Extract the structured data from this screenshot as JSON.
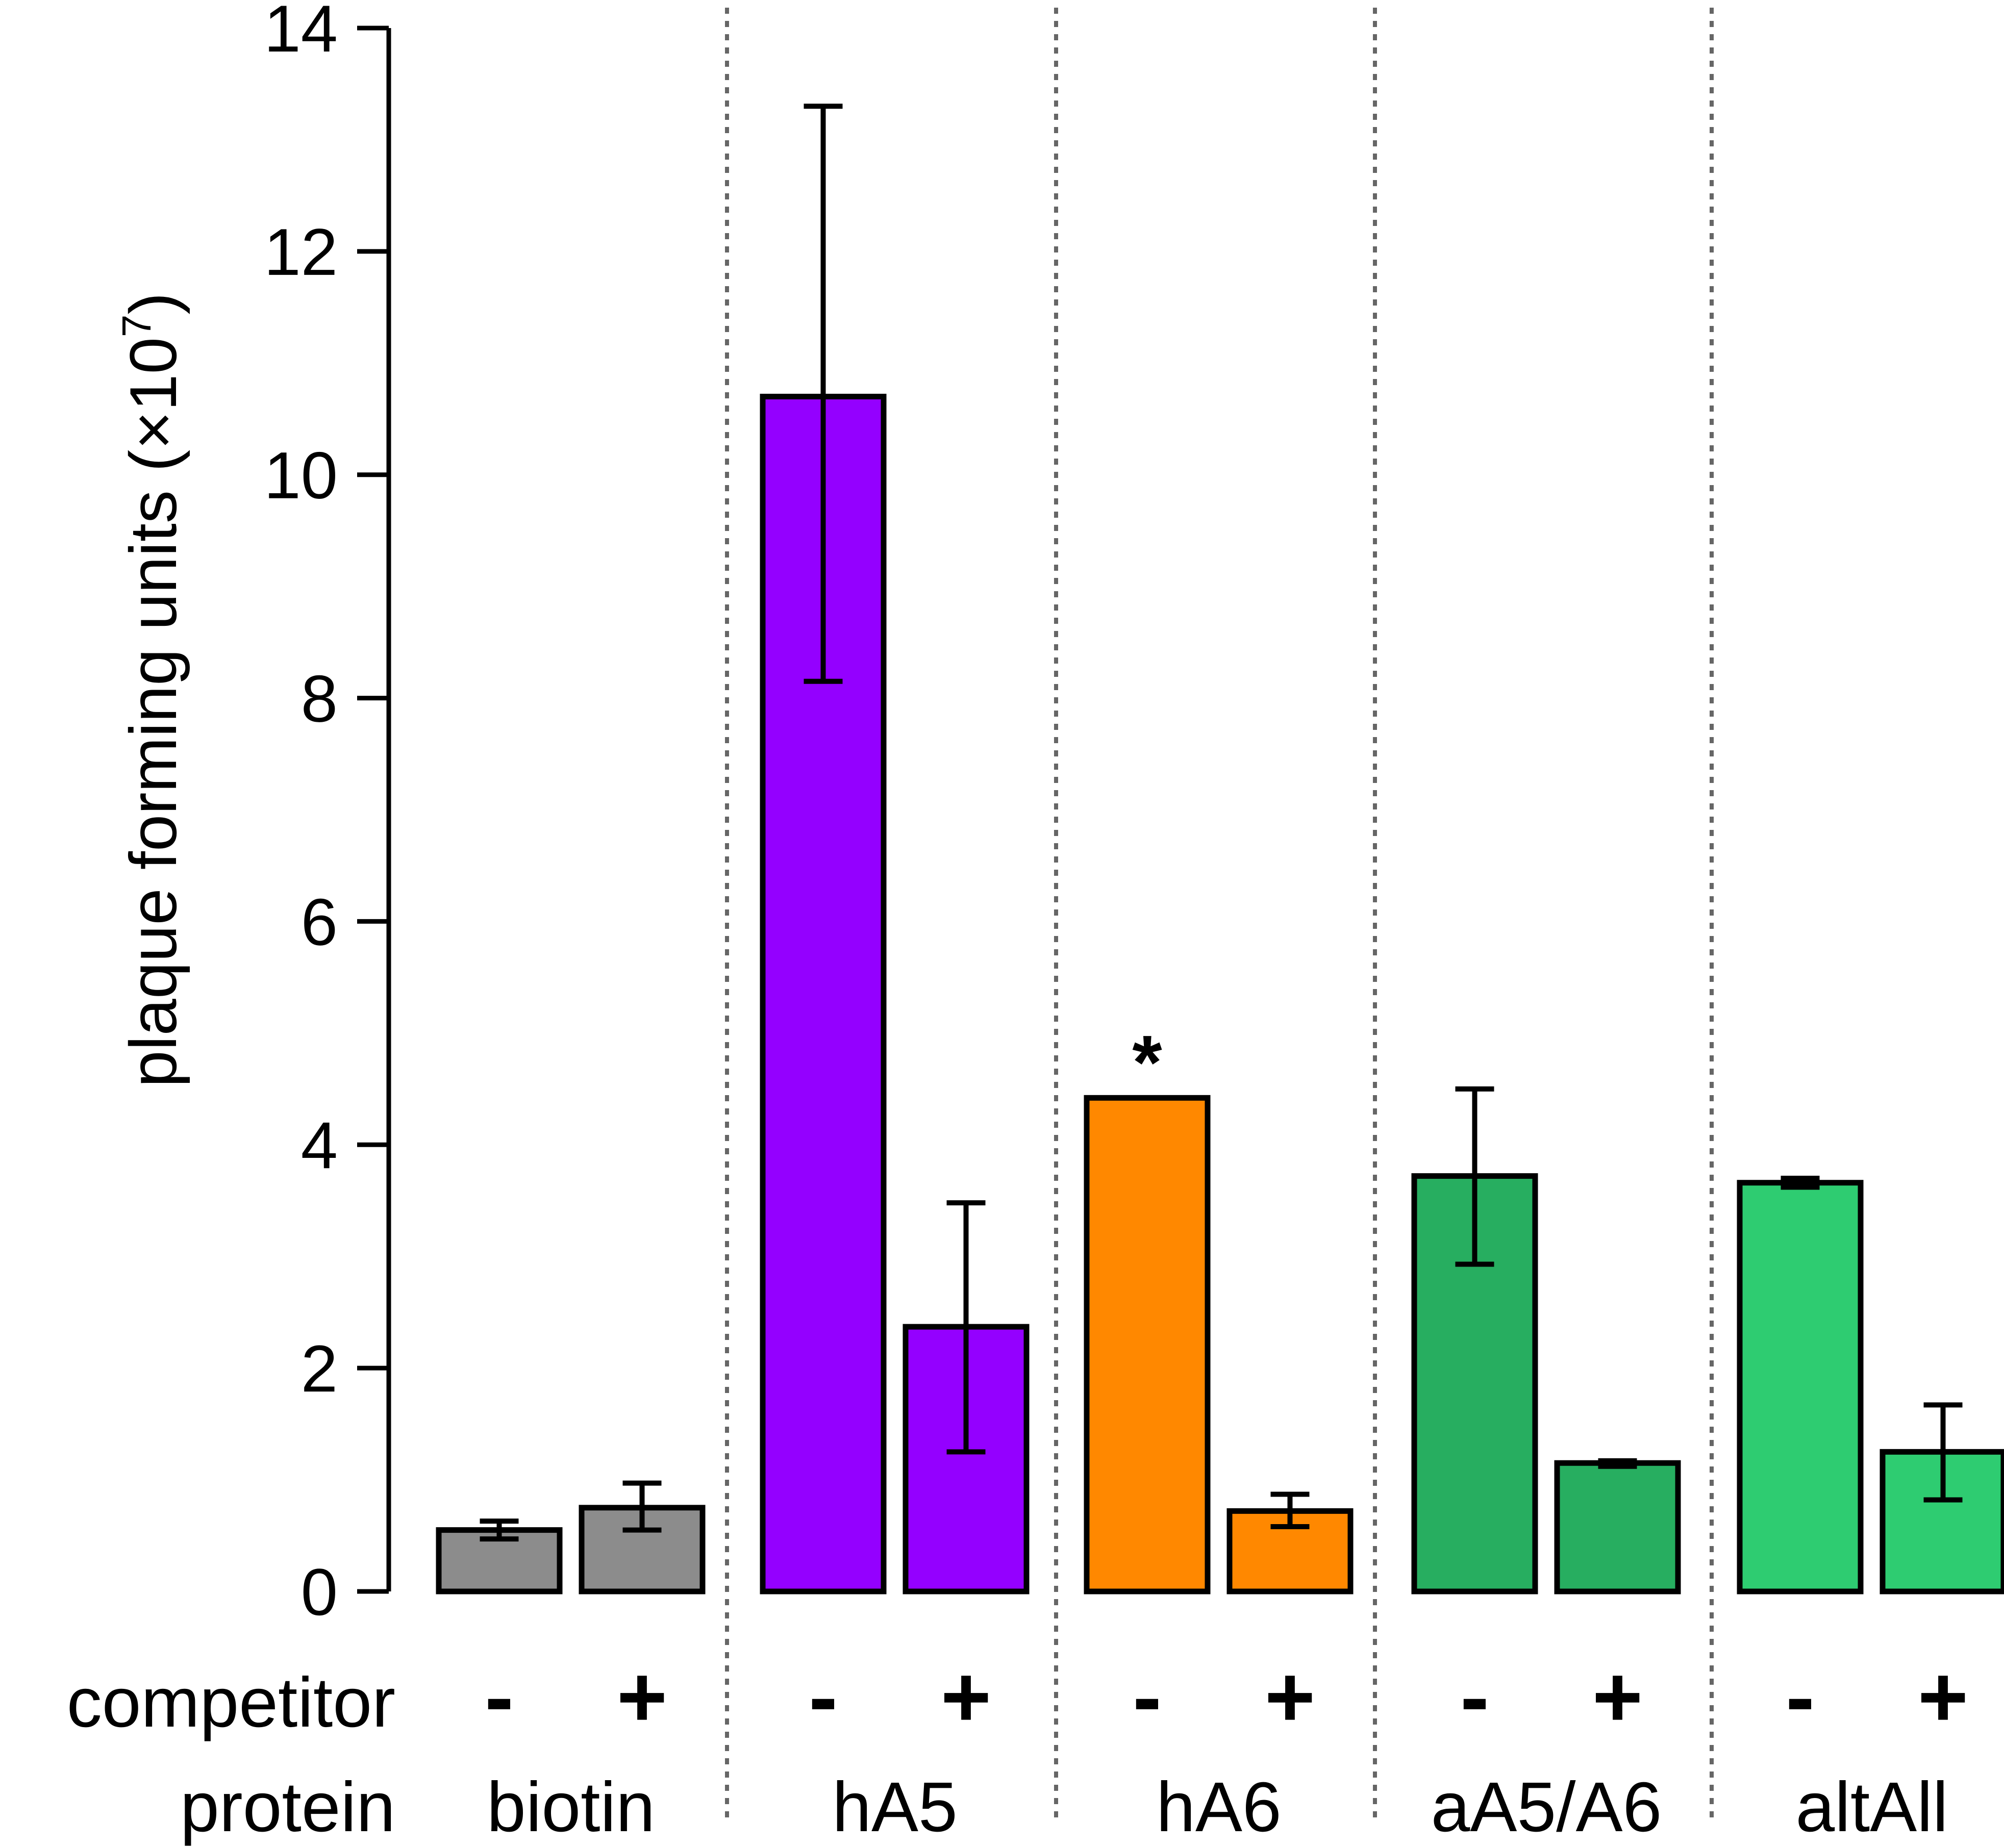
{
  "chart_data": {
    "type": "bar",
    "ylabel": "plaque forming units (×10⁷)",
    "ylabel_base": "plaque forming units (×10",
    "ylabel_sup": "7",
    "ylabel_close": ")",
    "ylim": [
      0,
      14
    ],
    "yticks": [
      "0",
      "2",
      "4",
      "6",
      "8",
      "10",
      "12",
      "14"
    ],
    "grid": false,
    "row_labels": {
      "competitor": "competitor",
      "protein": "protein"
    },
    "groups": [
      {
        "protein": "biotin",
        "color": "#8c8c8c",
        "bars": [
          {
            "competitor": "-",
            "value": 0.55,
            "err_low": 0.47,
            "err_high": 0.63
          },
          {
            "competitor": "+",
            "value": 0.75,
            "err_low": 0.55,
            "err_high": 0.97
          }
        ]
      },
      {
        "protein": "hA5",
        "color": "#9400ff",
        "bars": [
          {
            "competitor": "-",
            "value": 10.7,
            "err_low": 8.15,
            "err_high": 13.3
          },
          {
            "competitor": "+",
            "value": 2.37,
            "err_low": 1.25,
            "err_high": 3.48
          }
        ]
      },
      {
        "protein": "hA6",
        "color": "#ff8800",
        "annotation": "*",
        "bars": [
          {
            "competitor": "-",
            "value": 4.42
          },
          {
            "competitor": "+",
            "value": 0.72,
            "err_low": 0.58,
            "err_high": 0.87
          }
        ]
      },
      {
        "protein": "aA5/A6",
        "color": "#27ae60",
        "bars": [
          {
            "competitor": "-",
            "value": 3.72,
            "err_low": 2.93,
            "err_high": 4.5
          },
          {
            "competitor": "+",
            "value": 1.15,
            "err_low": 1.12,
            "err_high": 1.17
          }
        ]
      },
      {
        "protein": "altAll",
        "color": "#2ecc71",
        "bars": [
          {
            "competitor": "-",
            "value": 3.66,
            "err_low": 3.62,
            "err_high": 3.7
          },
          {
            "competitor": "+",
            "value": 1.25,
            "err_low": 0.82,
            "err_high": 1.67
          }
        ]
      }
    ]
  }
}
